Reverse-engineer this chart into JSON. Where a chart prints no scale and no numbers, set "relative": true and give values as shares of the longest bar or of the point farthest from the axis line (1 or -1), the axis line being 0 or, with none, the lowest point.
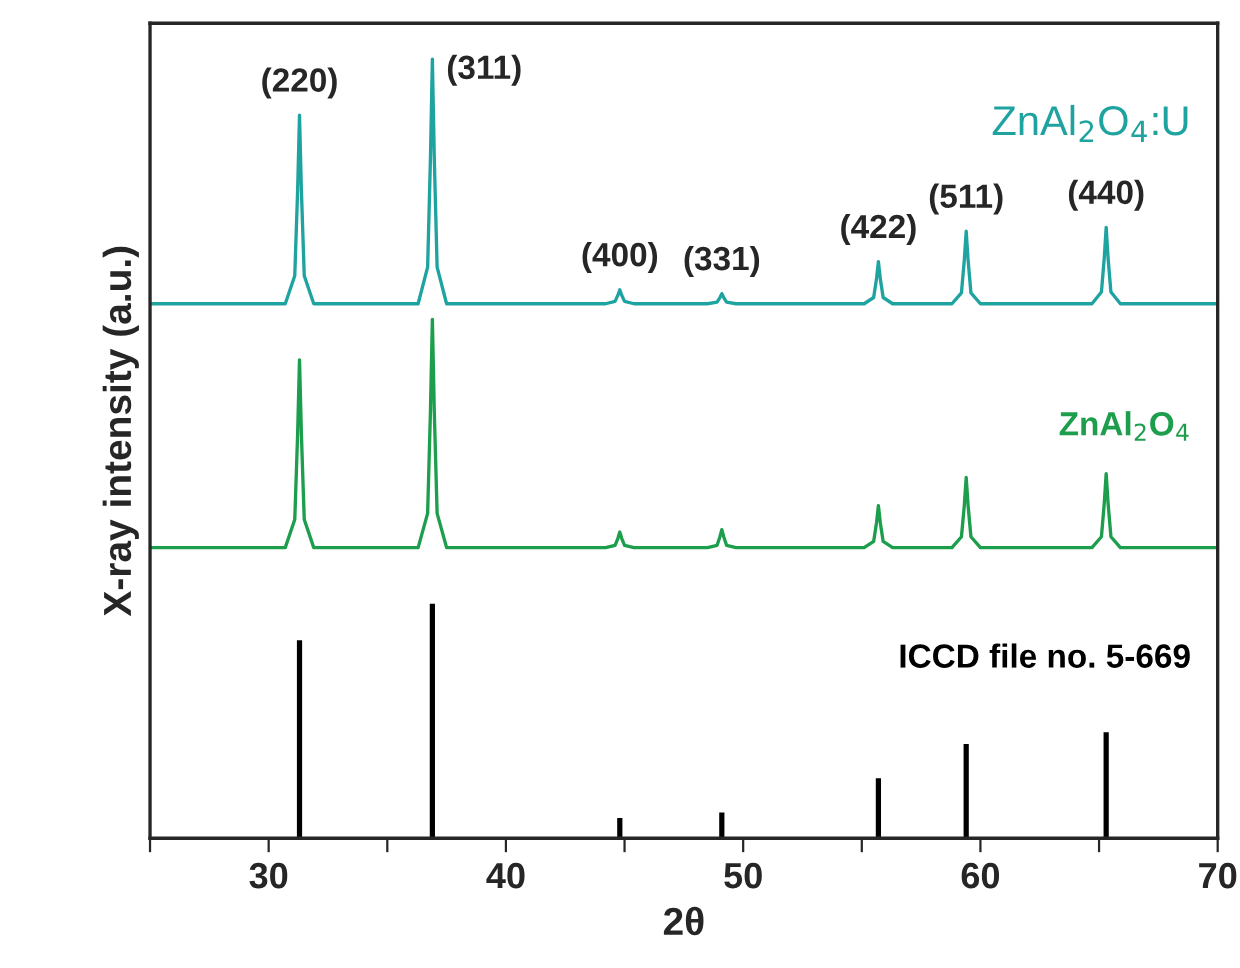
{
  "chart_data": {
    "type": "line",
    "relative": true,
    "xlabel": "2θ",
    "ylabel": "X-ray intensity (a.u.)",
    "xlim": [
      25,
      70
    ],
    "xticks": [
      {
        "value": 25,
        "label": null
      },
      30,
      {
        "value": 35,
        "label": null
      },
      40,
      {
        "value": 45,
        "label": null
      },
      50,
      {
        "value": 55,
        "label": null
      },
      60,
      {
        "value": 65,
        "label": null
      },
      70
    ],
    "tick_labels": "x",
    "legend": false,
    "grid": false,
    "x": [
      25,
      30.7,
      31.1,
      31.22,
      31.3,
      31.38,
      31.5,
      31.9,
      36.3,
      36.7,
      36.82,
      36.9,
      36.98,
      37.1,
      37.5,
      44.2,
      44.6,
      44.72,
      44.8,
      44.88,
      45.0,
      45.4,
      48.5,
      48.9,
      49.02,
      49.1,
      49.18,
      49.3,
      49.7,
      55.1,
      55.5,
      55.62,
      55.7,
      55.78,
      55.9,
      56.3,
      58.8,
      59.2,
      59.32,
      59.4,
      59.48,
      59.6,
      60.0,
      64.7,
      65.1,
      65.22,
      65.3,
      65.38,
      65.5,
      65.9,
      70
    ],
    "series": [
      {
        "name": "ZnAl$_{2}$O$_{4}$:U",
        "color": "#1fa3a0",
        "values": [
          0.686,
          0.686,
          0.722,
          0.831,
          0.928,
          0.831,
          0.722,
          0.686,
          0.686,
          0.733,
          0.874,
          1.0,
          0.874,
          0.733,
          0.686,
          0.686,
          0.689,
          0.697,
          0.704,
          0.697,
          0.689,
          0.686,
          0.686,
          0.688,
          0.694,
          0.699,
          0.694,
          0.688,
          0.686,
          0.686,
          0.694,
          0.718,
          0.74,
          0.718,
          0.694,
          0.686,
          0.686,
          0.7,
          0.742,
          0.779,
          0.742,
          0.7,
          0.686,
          0.686,
          0.701,
          0.745,
          0.784,
          0.745,
          0.701,
          0.686,
          0.686
        ]
      },
      {
        "name": "ZnAl$_{2}$O$_{4}$",
        "color": "#1d9e4c",
        "values": [
          0.373,
          0.373,
          0.409,
          0.518,
          0.614,
          0.518,
          0.409,
          0.373,
          0.373,
          0.417,
          0.549,
          0.666,
          0.549,
          0.417,
          0.373,
          0.373,
          0.376,
          0.385,
          0.393,
          0.385,
          0.376,
          0.373,
          0.373,
          0.376,
          0.387,
          0.396,
          0.387,
          0.376,
          0.373,
          0.373,
          0.381,
          0.405,
          0.427,
          0.405,
          0.381,
          0.373,
          0.373,
          0.387,
          0.427,
          0.463,
          0.427,
          0.387,
          0.373,
          0.373,
          0.387,
          0.43,
          0.468,
          0.43,
          0.387,
          0.373,
          0.373
        ]
      },
      {
        "name": "ICCD file no. 5-669",
        "type": "bar",
        "color": "#000000",
        "x": [
          31.3,
          36.9,
          44.8,
          49.1,
          55.7,
          59.4,
          65.3
        ],
        "values": [
          0.254,
          0.301,
          0.026,
          0.033,
          0.077,
          0.121,
          0.136
        ]
      }
    ],
    "annotations": [
      {
        "text": "(220)",
        "x": 31.3,
        "y": 0.928
      },
      {
        "text": "(311)",
        "x": 36.9,
        "y": 1.0
      },
      {
        "text": "(400)",
        "x": 44.8,
        "y": 0.704
      },
      {
        "text": "(331)",
        "x": 49.1,
        "y": 0.699
      },
      {
        "text": "(422)",
        "x": 55.7,
        "y": 0.74
      },
      {
        "text": "(511)",
        "x": 59.4,
        "y": 0.779
      },
      {
        "text": "(440)",
        "x": 65.3,
        "y": 0.784
      }
    ]
  }
}
